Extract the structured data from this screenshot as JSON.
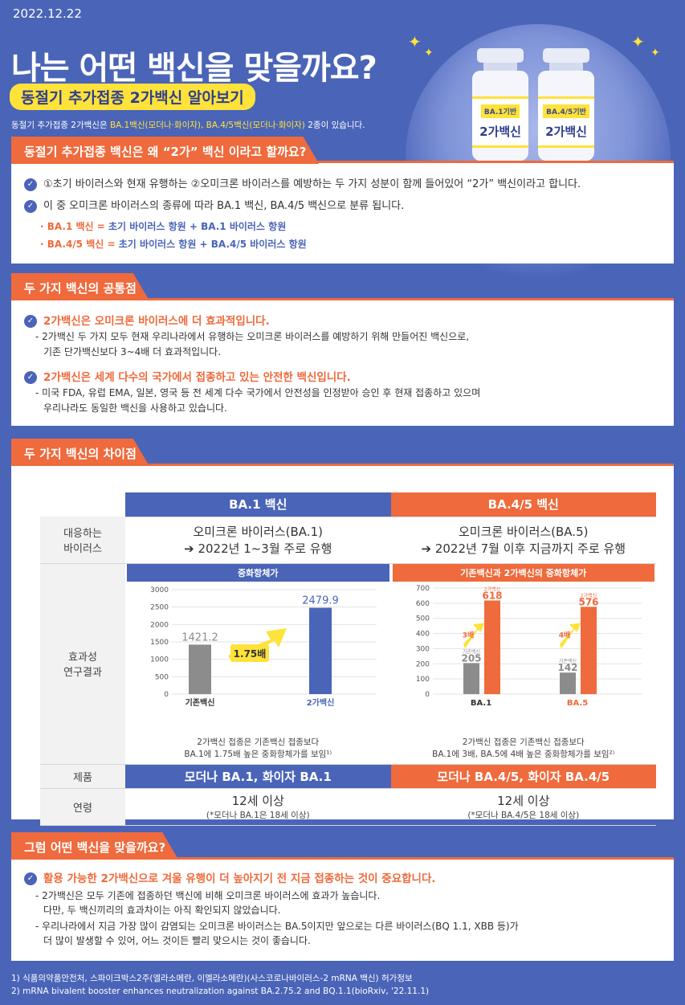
{
  "header": {
    "date": "2022.12.22",
    "title": "나는 어떤 백신을 맞을까요?",
    "subtitle": "동절기 추가접종 2가백신 알아보기",
    "intro_a": "동절기 추가접종 2가백신은 ",
    "intro_hl": "BA.1백신(모더나·화이자), BA.4/5백신(모더나·화이자)",
    "intro_b": " 2종이 있습니다.",
    "vial1_tag": "BA.1기반",
    "vial1_name": "2가백신",
    "vial2_tag": "BA.4/5기반",
    "vial2_name": "2가백신"
  },
  "section1": {
    "heading": "동절기 추가접종 백신은 왜 “2가” 백신 이라고 할까요?",
    "b1": "①초기 바이러스와 현재 유행하는 ②오미크론 바이러스를 예방하는 두 가지 성분이 함께 들어있어 “2가” 백신이라고 합니다.",
    "b2": "이 중 오미크론 바이러스의 종류에 따라 BA.1 백신, BA.4/5 백신으로 분류 됩니다.",
    "s1_a": "· BA.1 백신 = ",
    "s1_b": "초기 바이러스 항원 + BA.1 바이러스 항원",
    "s2_a": "· BA.4/5 백신 = ",
    "s2_b": "초기 바이러스 항원 + BA.4/5 바이러스 항원"
  },
  "section2": {
    "heading": "두 가지 백신의 공통점",
    "p1": "2가백신은 오미크론 바이러스에 더 효과적입니다.",
    "p1_d1": "- 2가백신 두 가지 모두 현재 우리나라에서 유행하는 오미크론 바이러스를 예방하기 위해 만들어진 백신으로,",
    "p1_d2": "기존 단가백신보다 3~4배 더 효과적입니다.",
    "p2": "2가백신은 세계 다수의 국가에서 접종하고 있는 안전한 백신입니다.",
    "p2_d1": "- 미국 FDA, 유럽 EMA, 일본, 영국 등 전 세계 다수 국가에서 안전성을 인정받아 승인 후 현재 접종하고 있으며",
    "p2_d2": "우리나라도 동일한 백신을 사용하고 있습니다."
  },
  "section3": {
    "heading": "두 가지 백신의 차이점",
    "col1": "BA.1 백신",
    "col2": "BA.4/5 백신",
    "row_virus": "대응하는\n바이러스",
    "virus1_a": "오미크론 바이러스(BA.1)",
    "virus1_b": "➔ 2022년 1~3월 주로 유행",
    "virus2_a": "오미크론 바이러스(BA.5)",
    "virus2_b": "➔ 2022년 7월 이후 지금까지 주로 유행",
    "row_effect": "효과성\n연구결과",
    "chart1_title": "중화항체가",
    "chart2_title": "기존백신과 2가백신의 중화항체가",
    "note1_a": "2가백신 접종은 기존백신 접종보다",
    "note1_b": "BA.1에 1.75배 높은 중화항체가를 보임¹⁾",
    "note2_a": "2가백신 접종은 기존백신 접종보다",
    "note2_b": "BA.1에 3배,  BA.5에 4배 높은 중화항체가를 보임²⁾",
    "row_product": "제품",
    "product1": "모더나 BA.1, 화이자 BA.1",
    "product2": "모더나 BA.4/5, 화이자 BA.4/5",
    "row_age": "연령",
    "age1_a": "12세 이상",
    "age1_b": "(*모더나 BA.1은 18세 이상)",
    "age2_a": "12세 이상",
    "age2_b": "(*모더나 BA.4/5은 18세 이상)"
  },
  "section4": {
    "heading": "그럼 어떤 백신을 맞을까요?",
    "p1": "활용 가능한 2가백신으로 겨울 유행이 더 높아지기 전 지금 접종하는 것이 중요합니다.",
    "d1": "- 2가백신은 모두 기존에 접종하던 백신에 비해 오미크론 바이러스에 효과가 높습니다.",
    "d2": "다만, 두 백신끼리의 효과차이는 아직 확인되지 않았습니다.",
    "d3": "- 우리나라에서 지금 가장 많이 감염되는 오미크론 바이러스는 BA.5이지만 앞으로는 다른 바이러스(BQ 1.1, XBB 등)가",
    "d4": "더 많이 발생할 수 있어, 어느 것이든 빨리 맞으시는 것이 좋습니다."
  },
  "footnotes": {
    "f1": "1) 식품의약품안전처, 스파이크박스2주(엘라소메란, 이멜라소메란)(사스코로나바이러스-2 mRNA 백신) 허가정보",
    "f2": "2) mRNA bivalent booster enhances neutralization against BA.2.75.2 and BQ.1.1(bioRxiv, '22.11.1)"
  },
  "chart_data": [
    {
      "type": "bar",
      "title": "중화항체가",
      "categories": [
        "기존백신",
        "2가백신"
      ],
      "values": [
        1421.2,
        2479.9
      ],
      "ylim": [
        0,
        3000
      ],
      "yticks": [
        0,
        500,
        1000,
        1500,
        2000,
        2500,
        3000
      ],
      "annotation": "1.75배",
      "colors": [
        "#8c8c8c",
        "#4a64b8"
      ]
    },
    {
      "type": "bar",
      "title": "기존백신과 2가백신의 중화항체가",
      "categories": [
        "BA.1",
        "BA.5"
      ],
      "series": [
        {
          "name": "기존백신",
          "values": [
            205,
            142
          ]
        },
        {
          "name": "2가백신",
          "values": [
            618,
            576
          ]
        }
      ],
      "ylim": [
        0,
        700
      ],
      "yticks": [
        0,
        100,
        200,
        300,
        400,
        500,
        600,
        700
      ],
      "annotations": [
        "3배",
        "4배"
      ],
      "colors": [
        "#8c8c8c",
        "#ef6a3c"
      ]
    }
  ]
}
